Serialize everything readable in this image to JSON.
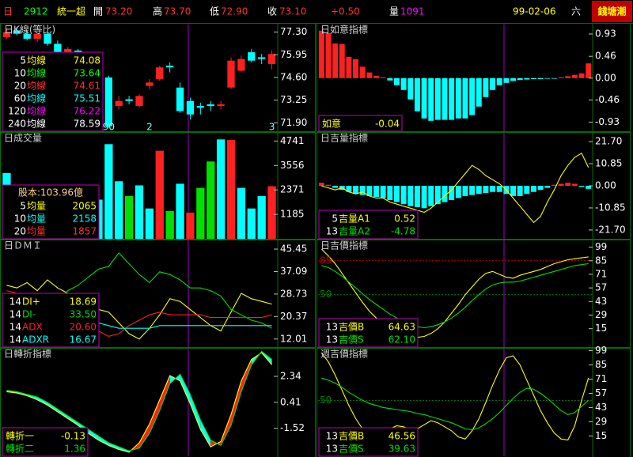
{
  "header": {
    "items": [
      {
        "text": "日",
        "color": "#ff3030"
      },
      {
        "text": "2912",
        "color": "#00ff00"
      },
      {
        "text": "統一超",
        "color": "#ffff00"
      },
      {
        "text": "開",
        "color": "#ffffff"
      },
      {
        "text": "73.20",
        "color": "#ff3030"
      },
      {
        "text": "高",
        "color": "#ffffff"
      },
      {
        "text": "73.70",
        "color": "#ff3030"
      },
      {
        "text": "低",
        "color": "#ffffff"
      },
      {
        "text": "72.90",
        "color": "#ff3030"
      },
      {
        "text": "收",
        "color": "#ffffff"
      },
      {
        "text": "73.10",
        "color": "#ff3030"
      },
      {
        "text": "+0.50",
        "color": "#ff3030"
      },
      {
        "text": "量",
        "color": "#ffffff"
      },
      {
        "text": "1091",
        "color": "#ff00ff"
      },
      {
        "text": "99-02-06",
        "color": "#ffff00"
      },
      {
        "text": "六",
        "color": "#ffffff"
      }
    ],
    "logo": "錢塘潮",
    "logo_color": "#ffff00",
    "logo_bg": "#c00000"
  },
  "chart_data": [
    {
      "type": "candlestick",
      "title": "日K線(等比)",
      "up_color": "#ff2020",
      "down_color": "#00ffff",
      "categories": [
        null,
        null,
        null,
        null,
        null,
        null,
        null,
        null,
        null,
        null,
        "90",
        null,
        null,
        null,
        "2",
        null,
        null,
        null,
        null,
        null,
        null,
        null,
        null,
        null,
        null,
        null,
        "3"
      ],
      "open": [
        77.0,
        77.4,
        77.2,
        76.9,
        77.2,
        76.6,
        76.1,
        76.2,
        75.5,
        75.0,
        74.6,
        72.9,
        73.3,
        72.9,
        74.1,
        74.5,
        75.3,
        74.0,
        73.2,
        72.9,
        73.0,
        72.9,
        74.0,
        75.0,
        76.1,
        75.8,
        75.4
      ],
      "high": [
        77.5,
        77.6,
        77.4,
        77.3,
        77.3,
        76.8,
        76.4,
        76.3,
        75.8,
        75.2,
        74.7,
        73.5,
        73.5,
        73.6,
        74.5,
        75.3,
        75.5,
        74.3,
        73.4,
        73.1,
        73.2,
        73.2,
        75.8,
        75.9,
        76.3,
        76.0,
        76.2
      ],
      "low": [
        76.9,
        77.1,
        76.8,
        76.7,
        76.5,
        76.0,
        75.7,
        75.4,
        74.9,
        74.5,
        71.6,
        72.7,
        73.0,
        72.8,
        73.9,
        74.4,
        74.9,
        72.5,
        72.1,
        72.4,
        72.6,
        72.7,
        73.9,
        74.9,
        75.5,
        75.4,
        75.1
      ],
      "close": [
        77.3,
        77.2,
        76.9,
        77.2,
        76.6,
        76.1,
        76.3,
        75.5,
        75.0,
        74.7,
        71.7,
        73.2,
        73.2,
        73.5,
        74.3,
        75.2,
        75.2,
        72.6,
        72.4,
        72.8,
        72.9,
        73.0,
        75.6,
        75.7,
        75.6,
        75.7,
        76.0
      ],
      "ylim": [
        71.4,
        77.75
      ],
      "yticks": [
        {
          "value": 77.3,
          "label": "77.30"
        },
        75.95,
        {
          "value": 74.6,
          "label": "74.60"
        },
        73.25,
        {
          "value": 71.9,
          "label": "71.90"
        }
      ],
      "legend_items": [
        {
          "period": 5,
          "name": "均線",
          "readout": "74.08",
          "color": "#ffff00"
        },
        {
          "period": 10,
          "name": "均線",
          "readout": "73.64",
          "color": "#00ff00"
        },
        {
          "period": 20,
          "name": "均線",
          "readout": "74.61",
          "color": "#ff3030"
        },
        {
          "period": 60,
          "name": "均線",
          "readout": "75.51",
          "color": "#00ffff"
        },
        {
          "period": 120,
          "name": "均線",
          "readout": "76.22",
          "color": "#ff00ff"
        },
        {
          "period": 240,
          "name": "均線",
          "readout": "78.59",
          "color": "#ffffff"
        }
      ]
    },
    {
      "type": "bar",
      "title": "日成交量",
      "values": [
        3190,
        2600,
        1500,
        1200,
        2000,
        1800,
        2200,
        1600,
        2500,
        1900,
        4590,
        2790,
        2070,
        2590,
        1470,
        4270,
        1350,
        2670,
        1270,
        2470,
        3750,
        4820,
        4790,
        2470,
        1470,
        2070,
        2550
      ],
      "colors": [
        "#00ffff",
        "#00ffff",
        "#ff2020",
        "#00ffff",
        "#00ffff",
        "#ff2020",
        "#00ffff",
        "#00ffff",
        "#ff2020",
        "#00ffff",
        "#00ffff",
        "#00ffff",
        "#00e000",
        "#00ffff",
        "#00ffff",
        "#ff2020",
        "#00e000",
        "#00ffff",
        "#ff2020",
        "#00e000",
        "#00e000",
        "#00ffff",
        "#ff2020",
        "#00ffff",
        "#00ffff",
        "#00ffff",
        "#ff2020"
      ],
      "ylim": [
        0,
        5140
      ],
      "yticks": [
        4741,
        3556,
        2371,
        1185
      ],
      "note": "股本:103.96億",
      "note_color": "#ffd080",
      "legend_items": [
        {
          "period": 5,
          "name": "均量",
          "readout": "2065",
          "color": "#ffff00"
        },
        {
          "period": 10,
          "name": "均量",
          "readout": "2158",
          "color": "#00ffff"
        },
        {
          "period": 20,
          "name": "均量",
          "readout": "1857",
          "color": "#ff3030"
        }
      ]
    },
    {
      "type": "line",
      "title": "日ＤＭＩ",
      "ylim": [
        9,
        48.7
      ],
      "yticks": [
        45.45,
        37.09,
        28.73,
        20.37,
        12.01
      ],
      "series": [
        {
          "name": "DI+",
          "period": 14,
          "readout": "18.69",
          "color": "#ffff00",
          "values": [
            32,
            31,
            33,
            30,
            34,
            31,
            29,
            27,
            25,
            23,
            22,
            18,
            14,
            12,
            16,
            21,
            27,
            26,
            23,
            20,
            17,
            15,
            22,
            29,
            27,
            26,
            25
          ]
        },
        {
          "name": "DI-",
          "period": 14,
          "readout": "33.50",
          "color": "#00e000",
          "values": [
            26,
            27,
            25,
            28,
            24,
            26,
            30,
            32,
            35,
            38,
            39,
            44,
            40,
            36,
            33,
            37,
            36,
            34,
            31,
            31,
            30,
            28,
            23,
            21,
            19,
            18,
            16
          ]
        },
        {
          "name": "ADX",
          "period": 14,
          "readout": "20.60",
          "color": "#ff2020",
          "values": [
            30,
            29,
            28,
            27,
            26,
            24,
            22,
            20,
            18,
            15,
            13,
            14,
            17,
            19,
            21,
            22,
            21,
            21,
            21,
            21,
            20,
            20,
            20,
            20,
            20,
            20,
            21
          ]
        },
        {
          "name": "ADXR",
          "period": 14,
          "readout": "16.67",
          "color": "#00ffff",
          "values": [
            25,
            25,
            24,
            24,
            23,
            22,
            21,
            20,
            19,
            18,
            17,
            16,
            16,
            16,
            16,
            17,
            17,
            17,
            17,
            17,
            17,
            17,
            17,
            17,
            17,
            17,
            17
          ]
        }
      ]
    },
    {
      "type": "band",
      "title": "日轉折指標",
      "up_color": "#ff2020",
      "down_color": "#00ffff",
      "ylim": [
        -3.6,
        4.4
      ],
      "yticks": [
        2.34,
        0.41,
        -1.52
      ],
      "series": [
        {
          "name": "轉折一",
          "readout": "-0.13",
          "color": "#ffff00",
          "values": [
            1.2,
            1.1,
            0.9,
            0.6,
            0.2,
            -0.3,
            -0.8,
            -1.3,
            -1.9,
            -2.4,
            -2.8,
            -3.1,
            -3.3,
            -2.6,
            -1.2,
            0.6,
            2.4,
            2.0,
            0.3,
            -1.6,
            -2.9,
            -2.5,
            -0.5,
            2.0,
            3.6,
            4.1,
            3.2
          ]
        },
        {
          "name": "轉折二",
          "readout": "1.36",
          "color": "#00e000",
          "values": [
            1.3,
            1.2,
            1.0,
            0.8,
            0.4,
            -0.1,
            -0.6,
            -1.1,
            -1.6,
            -2.1,
            -2.6,
            -2.9,
            -3.2,
            -3.0,
            -1.9,
            -0.2,
            1.8,
            2.5,
            1.0,
            -0.9,
            -2.4,
            -2.8,
            -1.3,
            1.2,
            3.2,
            4.2,
            3.6
          ]
        }
      ]
    },
    {
      "type": "bar",
      "title": "日如意指標",
      "up_color": "#ff2020",
      "down_color": "#00ffff",
      "ylim": [
        -1.12,
        1.13
      ],
      "yticks": [
        0.93,
        0.46,
        {
          "value": 0,
          "label": "0.00"
        },
        -0.46,
        -0.93
      ],
      "series": [
        {
          "name": "如意",
          "readout": "-0.04",
          "color": "#ffff00",
          "values": [
            1.0,
            0.95,
            0.73,
            0.72,
            0.45,
            0.4,
            0.24,
            0.12,
            0.05,
            0.02,
            -0.05,
            -0.15,
            -0.25,
            -0.45,
            -0.7,
            -0.85,
            -0.9,
            -0.88,
            -0.88,
            -0.88,
            -0.85,
            -0.85,
            -0.78,
            -0.6,
            -0.4,
            -0.25,
            -0.15,
            -0.1,
            -0.06,
            -0.04,
            -0.03,
            -0.02,
            -0.02,
            -0.01,
            -0.01,
            0.02,
            0.04,
            0.07,
            0.1,
            0.31
          ]
        }
      ]
    },
    {
      "type": "combo",
      "title": "日吉量指標",
      "up_color": "#ff2020",
      "down_color": "#00ffff",
      "ylim": [
        -26,
        26
      ],
      "yticks": [
        {
          "value": 21.7,
          "label": "21.70"
        },
        10.85,
        {
          "value": 0,
          "label": "0.00"
        },
        -10.85,
        {
          "value": -21.7,
          "label": "-21.70"
        }
      ],
      "series": [
        {
          "name": "吉量A1",
          "period": 5,
          "readout": "0.52",
          "color": "#ffff00",
          "kind": "line",
          "values": [
            0,
            -1,
            -2,
            -1,
            -3,
            -4,
            -3,
            -5,
            -6,
            -6,
            -8,
            -9,
            -10,
            -11,
            -12,
            -13,
            -11,
            -8,
            -5,
            -2,
            2,
            6,
            10,
            8,
            5,
            3,
            1,
            -2,
            -6,
            -10,
            -14,
            -18,
            -15,
            -8,
            -2,
            5,
            10,
            14,
            16,
            9
          ]
        },
        {
          "name": "吉量A2",
          "period": 13,
          "readout": "-4.78",
          "color": "#00e000",
          "kind": "bar",
          "values": [
            1.5,
            0.5,
            -1,
            -2,
            -3,
            -4,
            -4.5,
            -5,
            -5.5,
            -6,
            -7,
            -8,
            -9,
            -10,
            -10.5,
            -11,
            -10,
            -9,
            -8,
            -7,
            -6,
            -5,
            -4.5,
            -4,
            -3.5,
            -3,
            -3,
            -4,
            -5,
            -5,
            -4,
            -3,
            -2,
            -1,
            0.5,
            1,
            1.5,
            1,
            -0.5,
            -1.5
          ]
        }
      ]
    },
    {
      "type": "line",
      "title": "日吉價指標",
      "ylim": [
        -4,
        106
      ],
      "yticks": [
        99,
        85,
        71,
        57,
        43,
        29,
        15
      ],
      "hlines": [
        {
          "value": 85,
          "color": "#c00000"
        },
        {
          "value": 50,
          "color": "#008000"
        }
      ],
      "series": [
        {
          "name": "吉價B",
          "period": 13,
          "readout": "64.63",
          "color": "#ffff00",
          "values": [
            97,
            90,
            82,
            72,
            62,
            52,
            42,
            33,
            26,
            20,
            15,
            11,
            8,
            6,
            6,
            7,
            10,
            15,
            22,
            31,
            40,
            50,
            58,
            66,
            72,
            74,
            71,
            68,
            67,
            70,
            72,
            74,
            76,
            79,
            82,
            84,
            86,
            87,
            88,
            89
          ]
        },
        {
          "name": "吉價S",
          "period": 13,
          "readout": "62.10",
          "color": "#00e000",
          "values": [
            80,
            78,
            74,
            69,
            63,
            57,
            51,
            45,
            40,
            35,
            30,
            26,
            22,
            19,
            17,
            16,
            17,
            19,
            22,
            26,
            31,
            37,
            44,
            50,
            56,
            60,
            62,
            63,
            63,
            64,
            66,
            68,
            70,
            72,
            74,
            76,
            78,
            80,
            81,
            82
          ]
        }
      ]
    },
    {
      "type": "line",
      "title": "週吉價指標",
      "ylim": [
        -5,
        101
      ],
      "yticks": [
        99,
        85,
        71,
        57,
        43,
        29,
        15
      ],
      "hlines": [
        {
          "value": 50,
          "color": "#008000"
        }
      ],
      "series": [
        {
          "name": "吉價B",
          "period": 13,
          "readout": "46.56",
          "color": "#ffff00",
          "values": [
            97,
            88,
            75,
            60,
            45,
            32,
            22,
            16,
            15,
            18,
            22,
            25,
            24,
            21,
            22,
            26,
            30,
            28,
            24,
            20,
            14,
            12,
            20,
            32,
            48,
            65,
            80,
            92,
            94,
            85,
            70,
            55,
            40,
            28,
            18,
            12,
            11,
            25,
            50,
            72
          ]
        },
        {
          "name": "吉價S",
          "period": 13,
          "readout": "39.63",
          "color": "#00e000",
          "values": [
            72,
            70,
            67,
            63,
            58,
            54,
            50,
            47,
            45,
            43,
            42,
            41,
            40,
            39,
            37,
            36,
            34,
            32,
            30,
            28,
            25,
            22,
            21,
            23,
            27,
            32,
            38,
            45,
            52,
            58,
            62,
            61,
            57,
            52,
            46,
            40,
            36,
            38,
            44,
            50
          ]
        }
      ]
    }
  ]
}
